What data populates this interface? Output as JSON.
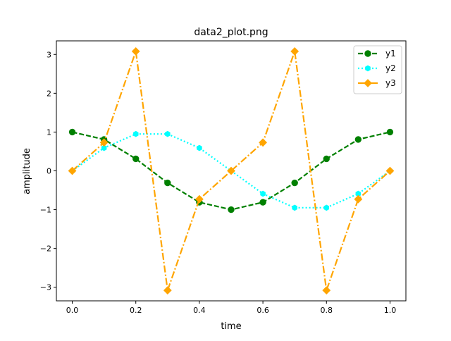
{
  "chart_data": {
    "type": "line",
    "title": "data2_plot.png",
    "xlabel": "time",
    "ylabel": "amplitude",
    "xlim": [
      -0.05,
      1.05
    ],
    "ylim": [
      -3.35,
      3.35
    ],
    "x_ticks": [
      0.0,
      0.2,
      0.4,
      0.6,
      0.8,
      1.0
    ],
    "x_tick_labels": [
      "0.0",
      "0.2",
      "0.4",
      "0.6",
      "0.8",
      "1.0"
    ],
    "y_ticks": [
      -3,
      -2,
      -1,
      0,
      1,
      2,
      3
    ],
    "y_tick_labels": [
      "−3",
      "−2",
      "−1",
      "0",
      "1",
      "2",
      "3"
    ],
    "grid": false,
    "legend_position": "top-right",
    "x": [
      0.0,
      0.1,
      0.2,
      0.3,
      0.4,
      0.5,
      0.6,
      0.7,
      0.8,
      0.9,
      1.0
    ],
    "series": [
      {
        "name": "y1",
        "color": "#008000",
        "line_style": "dashed",
        "marker": "circle",
        "values": [
          1.0,
          0.81,
          0.31,
          -0.31,
          -0.81,
          -1.0,
          -0.81,
          -0.31,
          0.31,
          0.81,
          1.0
        ]
      },
      {
        "name": "y2",
        "color": "#00ffff",
        "line_style": "dotted",
        "marker": "hexagon",
        "values": [
          0.0,
          0.59,
          0.95,
          0.95,
          0.59,
          0.0,
          -0.59,
          -0.95,
          -0.95,
          -0.59,
          0.0
        ]
      },
      {
        "name": "y3",
        "color": "#ffa500",
        "line_style": "dashdot",
        "marker": "diamond",
        "values": [
          0.0,
          0.73,
          3.08,
          -3.08,
          -0.73,
          0.0,
          0.73,
          3.08,
          -3.08,
          -0.73,
          0.0
        ]
      }
    ]
  }
}
